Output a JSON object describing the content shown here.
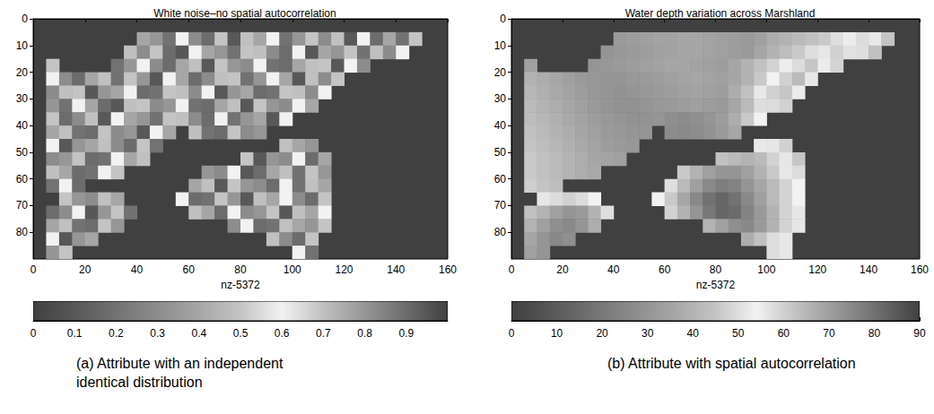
{
  "chart_data": [
    {
      "type": "heatmap",
      "title": "White noise–no spatial autocorrelation",
      "xlabel": "nz-5372",
      "caption": "(a) Attribute with an independent identical distribution",
      "xlim": [
        0,
        160
      ],
      "xticks": [
        0,
        20,
        40,
        60,
        80,
        100,
        120,
        140,
        160
      ],
      "ylim": [
        90,
        0
      ],
      "yticks": [
        0,
        10,
        20,
        30,
        40,
        50,
        60,
        70,
        80
      ],
      "colorbar": {
        "range": [
          0,
          1
        ],
        "ticks": [
          0,
          0.1,
          0.2,
          0.3,
          0.4,
          0.5,
          0.6,
          0.7,
          0.8,
          0.9
        ]
      },
      "cells": [
        [
          null,
          null,
          null,
          null,
          null,
          null,
          null,
          null,
          null,
          null,
          null,
          null,
          null,
          null,
          null,
          null,
          null,
          null,
          null,
          null,
          null,
          null,
          null,
          null,
          null,
          null,
          null,
          null,
          null,
          null,
          null,
          null
        ],
        [
          null,
          null,
          null,
          null,
          null,
          null,
          null,
          null,
          0.4,
          0.8,
          0.2,
          0.6,
          0.3,
          0.9,
          0.5,
          0.1,
          0.7,
          0.4,
          0.6,
          0.2,
          0.8,
          0.5,
          0.3,
          0.7,
          0.1,
          0.6,
          0.9,
          0.4,
          0.2,
          0.5,
          null,
          null
        ],
        [
          null,
          null,
          null,
          null,
          null,
          null,
          null,
          0.7,
          0.3,
          0.5,
          0.9,
          0.1,
          0.6,
          0.4,
          0.8,
          0.2,
          0.5,
          0.7,
          0.3,
          0.9,
          0.6,
          0.1,
          0.4,
          0.8,
          0.5,
          0.2,
          0.7,
          0.3,
          0.6,
          null,
          null,
          null
        ],
        [
          null,
          0.5,
          null,
          null,
          null,
          null,
          0.2,
          0.8,
          0.6,
          0.3,
          0.9,
          0.4,
          0.7,
          0.1,
          0.5,
          0.8,
          0.3,
          0.6,
          0.2,
          0.9,
          0.4,
          0.7,
          0.5,
          0.1,
          0.6,
          0.3,
          null,
          null,
          null,
          null,
          null,
          null
        ],
        [
          null,
          0.6,
          0.3,
          0.9,
          0.4,
          0.7,
          0.2,
          0.5,
          0.8,
          0.1,
          0.6,
          0.4,
          0.9,
          0.3,
          0.7,
          0.5,
          0.2,
          0.8,
          0.6,
          0.4,
          0.1,
          0.7,
          0.3,
          0.5,
          null,
          null,
          null,
          null,
          null,
          null,
          null,
          null
        ],
        [
          null,
          0.3,
          0.7,
          0.5,
          0.1,
          0.8,
          0.4,
          0.6,
          0.9,
          0.2,
          0.5,
          0.7,
          0.3,
          0.6,
          0.1,
          0.8,
          0.4,
          0.9,
          0.2,
          0.5,
          0.7,
          0.3,
          0.6,
          null,
          null,
          null,
          null,
          null,
          null,
          null,
          null,
          null
        ],
        [
          null,
          0.8,
          0.2,
          0.6,
          0.4,
          0.9,
          0.1,
          0.7,
          0.5,
          0.3,
          0.8,
          0.6,
          0.2,
          0.9,
          0.4,
          0.7,
          0.1,
          0.5,
          0.8,
          0.3,
          0.6,
          0.4,
          null,
          null,
          null,
          null,
          null,
          null,
          null,
          null,
          null,
          null
        ],
        [
          null,
          0.5,
          0.9,
          0.3,
          0.7,
          0.1,
          0.6,
          0.4,
          0.8,
          0.2,
          0.5,
          0.7,
          0.3,
          0.9,
          0.6,
          0.2,
          0.8,
          0.4,
          0.1,
          0.6,
          null,
          null,
          null,
          null,
          null,
          null,
          null,
          null,
          null,
          null,
          null,
          null
        ],
        [
          null,
          0.4,
          0.7,
          0.2,
          0.9,
          0.5,
          0.3,
          0.8,
          0.1,
          0.6,
          0.4,
          null,
          0.7,
          0.2,
          0.9,
          0.5,
          0.3,
          0.8,
          null,
          null,
          null,
          null,
          null,
          null,
          null,
          null,
          null,
          null,
          null,
          null,
          null,
          null
        ],
        [
          null,
          0.6,
          0.1,
          0.8,
          0.4,
          0.7,
          0.3,
          0.9,
          0.5,
          0.2,
          null,
          null,
          null,
          null,
          null,
          null,
          null,
          null,
          null,
          0.7,
          0.4,
          0.8,
          null,
          null,
          null,
          null,
          null,
          null,
          null,
          null,
          null,
          null
        ],
        [
          null,
          0.3,
          0.8,
          0.5,
          0.9,
          0.2,
          0.6,
          0.4,
          0.7,
          null,
          null,
          null,
          null,
          null,
          null,
          null,
          0.5,
          0.1,
          0.8,
          0.3,
          0.6,
          0.9,
          0.4,
          null,
          null,
          null,
          null,
          null,
          null,
          null,
          null,
          null
        ],
        [
          null,
          0.7,
          0.4,
          0.9,
          0.2,
          0.6,
          0.5,
          null,
          null,
          null,
          null,
          null,
          null,
          0.8,
          0.3,
          0.6,
          0.1,
          0.9,
          0.4,
          0.7,
          0.2,
          0.5,
          0.8,
          null,
          null,
          null,
          null,
          null,
          null,
          null,
          null,
          null
        ],
        [
          null,
          0.2,
          0.6,
          0.9,
          null,
          null,
          null,
          null,
          null,
          null,
          null,
          null,
          0.4,
          0.7,
          0.1,
          0.5,
          0.8,
          0.3,
          0.9,
          0.6,
          0.2,
          0.7,
          0.4,
          null,
          null,
          null,
          null,
          null,
          null,
          null,
          null,
          null
        ],
        [
          null,
          null,
          0.5,
          0.8,
          0.3,
          0.7,
          0.4,
          null,
          null,
          null,
          null,
          0.6,
          0.9,
          0.2,
          0.5,
          0.8,
          0.1,
          0.7,
          0.4,
          0.6,
          0.3,
          0.9,
          0.5,
          null,
          null,
          null,
          null,
          null,
          null,
          null,
          null,
          null
        ],
        [
          null,
          0.9,
          0.3,
          0.6,
          0.1,
          0.8,
          0.5,
          0.2,
          null,
          null,
          null,
          null,
          0.7,
          0.4,
          0.9,
          0.6,
          0.3,
          0.8,
          0.5,
          0.1,
          0.7,
          0.4,
          0.6,
          null,
          null,
          null,
          null,
          null,
          null,
          null,
          null,
          null
        ],
        [
          null,
          0.4,
          0.7,
          0.2,
          0.9,
          0.5,
          0.8,
          null,
          null,
          null,
          null,
          null,
          null,
          null,
          null,
          0.3,
          0.6,
          0.9,
          0.2,
          0.7,
          0.4,
          0.8,
          0.5,
          null,
          null,
          null,
          null,
          null,
          null,
          null,
          null,
          null
        ],
        [
          null,
          0.6,
          0.1,
          0.8,
          0.4,
          null,
          null,
          null,
          null,
          null,
          null,
          null,
          null,
          null,
          null,
          null,
          null,
          null,
          0.7,
          0.3,
          0.9,
          0.5,
          null,
          null,
          null,
          null,
          null,
          null,
          null,
          null,
          null,
          null
        ],
        [
          null,
          0.8,
          0.5,
          null,
          null,
          null,
          null,
          null,
          null,
          null,
          null,
          null,
          null,
          null,
          null,
          null,
          null,
          null,
          null,
          null,
          0.6,
          0.2,
          null,
          null,
          null,
          null,
          null,
          null,
          null,
          null,
          null,
          null
        ]
      ]
    },
    {
      "type": "heatmap",
      "title": "Water depth variation across Marshland",
      "xlabel": "nz-5372",
      "caption": "(b) Attribute with spatial autocorrelation",
      "xlim": [
        0,
        160
      ],
      "xticks": [
        0,
        20,
        40,
        60,
        80,
        100,
        120,
        140,
        160
      ],
      "ylim": [
        90,
        0
      ],
      "yticks": [
        0,
        10,
        20,
        30,
        40,
        50,
        60,
        70,
        80
      ],
      "colorbar": {
        "range": [
          0,
          90
        ],
        "ticks": [
          0,
          10,
          20,
          30,
          40,
          50,
          60,
          70,
          80,
          90
        ]
      },
      "cells": [
        [
          null,
          null,
          null,
          null,
          null,
          null,
          null,
          null,
          null,
          null,
          null,
          null,
          null,
          null,
          null,
          null,
          null,
          null,
          null,
          null,
          null,
          null,
          null,
          null,
          null,
          null,
          null,
          null,
          null,
          null,
          null,
          null
        ],
        [
          null,
          null,
          null,
          null,
          null,
          null,
          null,
          null,
          32,
          33,
          34,
          35,
          35,
          36,
          36,
          35,
          34,
          33,
          32,
          34,
          38,
          40,
          42,
          44,
          46,
          50,
          55,
          58,
          52,
          45,
          null,
          null
        ],
        [
          null,
          null,
          null,
          null,
          null,
          null,
          null,
          30,
          31,
          32,
          33,
          34,
          35,
          36,
          36,
          35,
          34,
          33,
          32,
          36,
          40,
          43,
          46,
          50,
          56,
          60,
          57,
          50,
          44,
          null,
          null,
          null
        ],
        [
          null,
          34,
          null,
          null,
          null,
          null,
          30,
          31,
          32,
          33,
          34,
          35,
          36,
          36,
          35,
          34,
          33,
          36,
          40,
          44,
          48,
          53,
          58,
          62,
          55,
          48,
          null,
          null,
          null,
          null,
          null,
          null
        ],
        [
          null,
          40,
          38,
          36,
          34,
          32,
          31,
          30,
          30,
          31,
          32,
          33,
          34,
          35,
          36,
          35,
          34,
          36,
          40,
          46,
          54,
          60,
          64,
          56,
          null,
          null,
          null,
          null,
          null,
          null,
          null,
          null
        ],
        [
          null,
          41,
          39,
          37,
          35,
          33,
          31,
          30,
          29,
          30,
          31,
          32,
          33,
          34,
          35,
          34,
          33,
          38,
          44,
          52,
          60,
          62,
          55,
          null,
          null,
          null,
          null,
          null,
          null,
          null,
          null,
          null
        ],
        [
          null,
          42,
          40,
          38,
          36,
          34,
          32,
          30,
          29,
          29,
          30,
          31,
          32,
          33,
          34,
          33,
          32,
          36,
          42,
          50,
          58,
          60,
          null,
          null,
          null,
          null,
          null,
          null,
          null,
          null,
          null,
          null
        ],
        [
          null,
          43,
          41,
          39,
          37,
          35,
          33,
          31,
          30,
          29,
          29,
          30,
          28,
          27,
          28,
          30,
          33,
          38,
          46,
          54,
          null,
          null,
          null,
          null,
          null,
          null,
          null,
          null,
          null,
          null,
          null,
          null
        ],
        [
          null,
          44,
          42,
          40,
          38,
          36,
          34,
          32,
          31,
          30,
          30,
          null,
          27,
          26,
          27,
          29,
          32,
          36,
          null,
          null,
          null,
          null,
          null,
          null,
          null,
          null,
          null,
          null,
          null,
          null,
          null,
          null
        ],
        [
          null,
          45,
          43,
          41,
          39,
          37,
          35,
          33,
          32,
          31,
          null,
          null,
          null,
          null,
          null,
          null,
          null,
          null,
          null,
          52,
          56,
          60,
          null,
          null,
          null,
          null,
          null,
          null,
          null,
          null,
          null,
          null
        ],
        [
          null,
          46,
          44,
          42,
          40,
          38,
          36,
          35,
          34,
          null,
          null,
          null,
          null,
          null,
          null,
          null,
          44,
          42,
          40,
          42,
          48,
          56,
          62,
          null,
          null,
          null,
          null,
          null,
          null,
          null,
          null,
          null
        ],
        [
          null,
          46,
          44,
          42,
          40,
          38,
          37,
          null,
          null,
          null,
          null,
          null,
          null,
          46,
          40,
          34,
          30,
          30,
          34,
          40,
          46,
          52,
          58,
          null,
          null,
          null,
          null,
          null,
          null,
          null,
          null,
          null
        ],
        [
          null,
          47,
          45,
          43,
          null,
          null,
          null,
          null,
          null,
          null,
          null,
          null,
          50,
          42,
          34,
          26,
          22,
          24,
          30,
          36,
          42,
          48,
          54,
          null,
          null,
          null,
          null,
          null,
          null,
          null,
          null,
          null
        ],
        [
          null,
          null,
          56,
          58,
          60,
          58,
          54,
          null,
          null,
          null,
          null,
          54,
          46,
          36,
          26,
          18,
          14,
          18,
          26,
          34,
          42,
          48,
          54,
          null,
          null,
          null,
          null,
          null,
          null,
          null,
          null,
          null
        ],
        [
          null,
          44,
          40,
          34,
          30,
          32,
          40,
          50,
          null,
          null,
          null,
          null,
          48,
          40,
          30,
          20,
          14,
          16,
          24,
          32,
          40,
          48,
          56,
          null,
          null,
          null,
          null,
          null,
          null,
          null,
          null,
          null
        ],
        [
          null,
          40,
          34,
          28,
          26,
          30,
          38,
          null,
          null,
          null,
          null,
          null,
          null,
          null,
          null,
          40,
          34,
          28,
          26,
          32,
          40,
          48,
          56,
          null,
          null,
          null,
          null,
          null,
          null,
          null,
          null,
          null
        ],
        [
          null,
          36,
          30,
          26,
          28,
          null,
          null,
          null,
          null,
          null,
          null,
          null,
          null,
          null,
          null,
          null,
          null,
          null,
          38,
          44,
          50,
          56,
          null,
          null,
          null,
          null,
          null,
          null,
          null,
          null,
          null,
          null
        ],
        [
          null,
          34,
          30,
          null,
          null,
          null,
          null,
          null,
          null,
          null,
          null,
          null,
          null,
          null,
          null,
          null,
          null,
          null,
          null,
          null,
          50,
          56,
          null,
          null,
          null,
          null,
          null,
          null,
          null,
          null,
          null,
          null
        ]
      ]
    }
  ]
}
